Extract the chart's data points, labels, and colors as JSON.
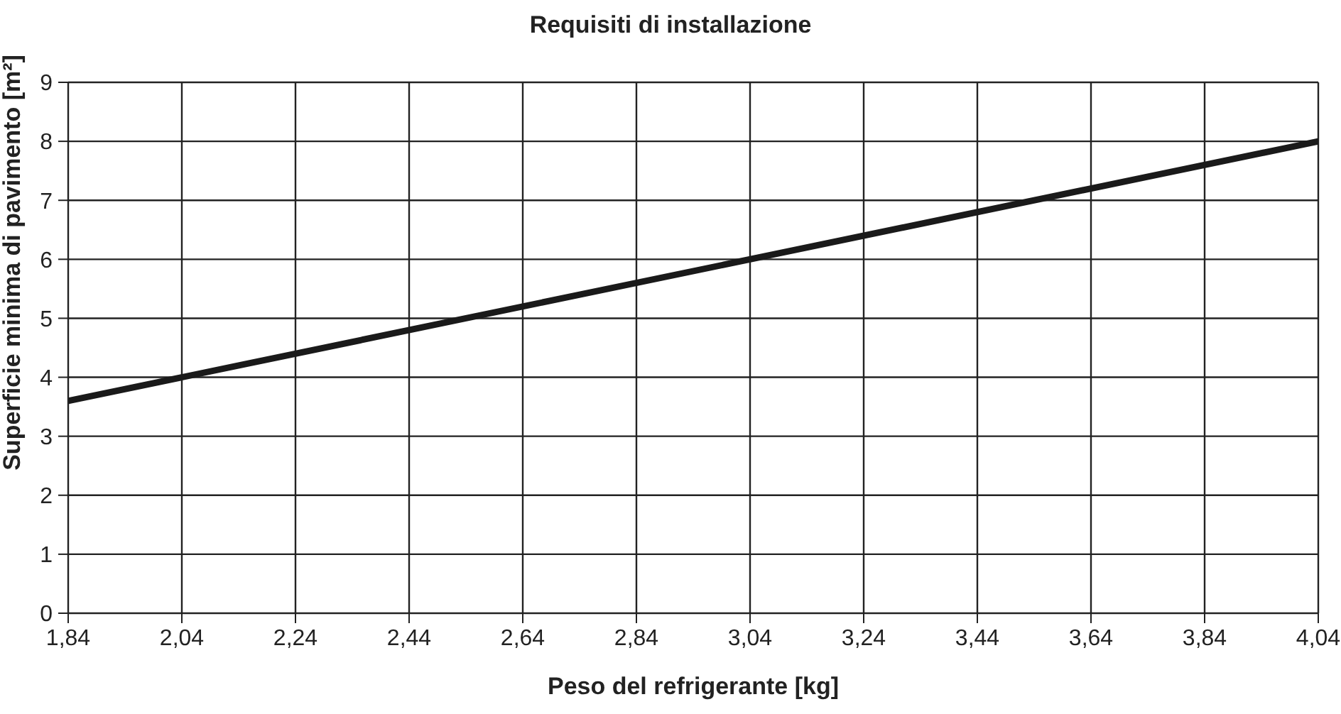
{
  "chart_data": {
    "type": "line",
    "title": "Requisiti di installazione",
    "xlabel": "Peso del refrigerante [kg]",
    "ylabel": "Superficie minima di pavimento [m²]",
    "x": [
      1.84,
      4.04
    ],
    "series": [
      {
        "color": "#1a1a1a",
        "values": [
          3.6,
          8.0
        ]
      }
    ],
    "xlim": [
      1.84,
      4.04
    ],
    "xticks": [
      {
        "value": 1.84,
        "label": "1,84"
      },
      {
        "value": 2.04,
        "label": "2,04"
      },
      {
        "value": 2.24,
        "label": "2,24"
      },
      {
        "value": 2.44,
        "label": "2,44"
      },
      {
        "value": 2.64,
        "label": "2,64"
      },
      {
        "value": 2.84,
        "label": "2,84"
      },
      {
        "value": 3.04,
        "label": "3,04"
      },
      {
        "value": 3.24,
        "label": "3,24"
      },
      {
        "value": 3.44,
        "label": "3,44"
      },
      {
        "value": 3.64,
        "label": "3,64"
      },
      {
        "value": 3.84,
        "label": "3,84"
      },
      {
        "value": 4.04,
        "label": "4,04"
      }
    ],
    "ylim": [
      0,
      9
    ],
    "yticks": [
      0,
      1,
      2,
      3,
      4,
      5,
      6,
      7,
      8,
      9
    ],
    "grid": true,
    "legend": false,
    "marker": "none",
    "line_style": "solid"
  }
}
